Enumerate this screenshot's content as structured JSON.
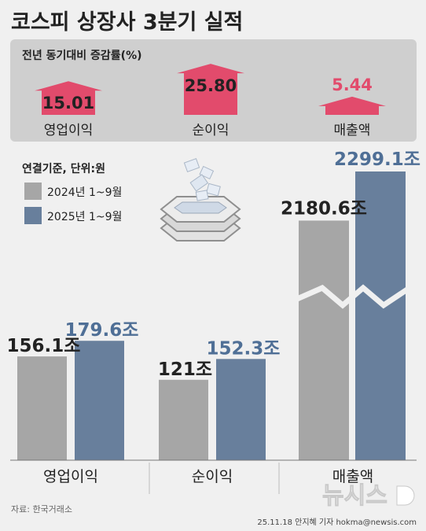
{
  "title": "코스피 상장사 3분기 실적",
  "growth_panel": {
    "label": "전년 동기대비 증감률(%)",
    "items": [
      {
        "name": "영업이익",
        "value": 15.01,
        "display": "15.01"
      },
      {
        "name": "순이익",
        "value": 25.8,
        "display": "25.80"
      },
      {
        "name": "매출액",
        "value": 5.44,
        "display": "5.44"
      }
    ]
  },
  "legend": {
    "basis": "연결기준, 단위:원",
    "items": [
      {
        "label": "2024년 1~9월",
        "color": "#a6a6a6"
      },
      {
        "label": "2025년 1~9월",
        "color": "#687f9c"
      }
    ]
  },
  "chart_data": [
    {
      "type": "bar",
      "title": "전년 동기대비 증감률(%)",
      "categories": [
        "영업이익",
        "순이익",
        "매출액"
      ],
      "values": [
        15.01,
        25.8,
        5.44
      ]
    },
    {
      "type": "bar",
      "categories": [
        "영업이익",
        "순이익",
        "매출액"
      ],
      "series": [
        {
          "name": "2024년 1~9월",
          "values": [
            156.1,
            121,
            2180.6
          ],
          "labels": [
            "156.1조",
            "121조",
            "2180.6조"
          ]
        },
        {
          "name": "2025년 1~9월",
          "values": [
            179.6,
            152.3,
            2299.1
          ],
          "labels": [
            "179.6조",
            "152.3조",
            "2299.1조"
          ]
        }
      ],
      "axis_break": {
        "category": "매출액"
      }
    }
  ],
  "colors": {
    "growth_arrow": "#e24b6c",
    "growth_text": "#e24b6c",
    "series_2024": "#a6a6a6",
    "series_2025": "#687f9c",
    "label_2025": "#4f6f96"
  },
  "source": "자료: 한국거래소",
  "credit": "25.11.18 안지혜 기자 hokma@newsis.com",
  "logo_text": "뉴시스"
}
